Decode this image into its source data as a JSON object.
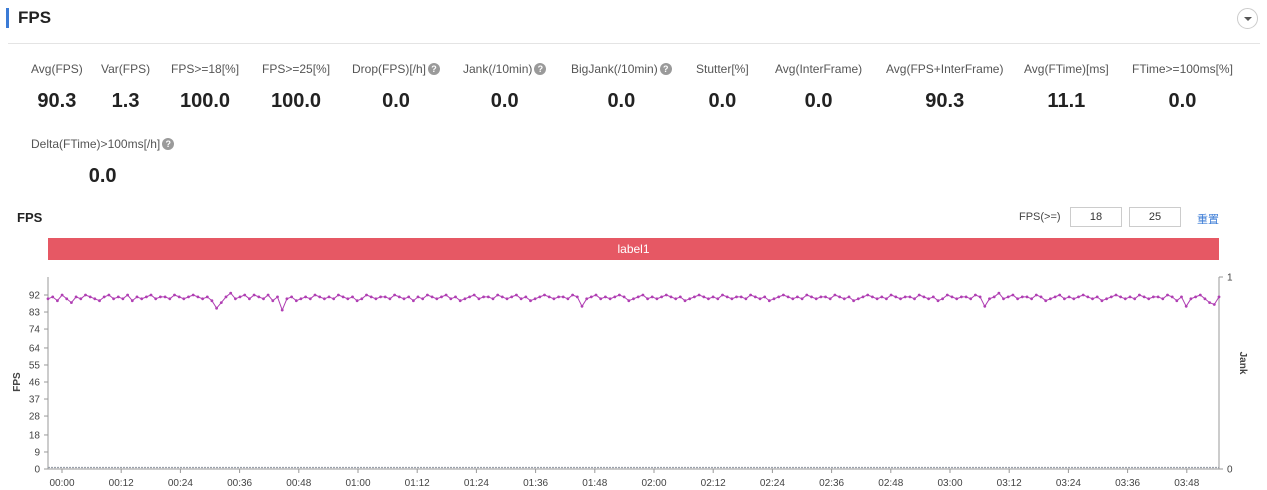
{
  "header": {
    "title": "FPS"
  },
  "metrics": [
    {
      "label": "Avg(FPS)",
      "value": "90.3",
      "help": false
    },
    {
      "label": "Var(FPS)",
      "value": "1.3",
      "help": false
    },
    {
      "label": "FPS>=18[%]",
      "value": "100.0",
      "help": false
    },
    {
      "label": "FPS>=25[%]",
      "value": "100.0",
      "help": false
    },
    {
      "label": "Drop(FPS)[/h]",
      "value": "0.0",
      "help": true
    },
    {
      "label": "Jank(/10min)",
      "value": "0.0",
      "help": true
    },
    {
      "label": "BigJank(/10min)",
      "value": "0.0",
      "help": true
    },
    {
      "label": "Stutter[%]",
      "value": "0.0",
      "help": false
    },
    {
      "label": "Avg(InterFrame)",
      "value": "0.0",
      "help": false
    },
    {
      "label": "Avg(FPS+InterFrame)",
      "value": "90.3",
      "help": false
    },
    {
      "label": "Avg(FTime)[ms]",
      "value": "11.1",
      "help": false
    },
    {
      "label": "FTime>=100ms[%]",
      "value": "0.0",
      "help": false
    },
    {
      "label": "Delta(FTime)>100ms[/h]",
      "value": "0.0",
      "help": true
    }
  ],
  "chart_header": {
    "title": "FPS",
    "threshold_label": "FPS(>=)",
    "threshold_1": "18",
    "threshold_2": "25",
    "reset_label": "重置"
  },
  "label_bar": "label1",
  "help_glyph": "?",
  "chart_data": {
    "type": "line",
    "ylabel": "FPS",
    "y2label": "Jank",
    "y_ticks": [
      "92",
      "83",
      "74",
      "64",
      "55",
      "46",
      "37",
      "28",
      "18",
      "9",
      "0"
    ],
    "y2_ticks": [
      "1",
      "0"
    ],
    "ylim": [
      0,
      100
    ],
    "x_ticks": [
      "00:00",
      "00:12",
      "00:24",
      "00:36",
      "00:48",
      "01:00",
      "01:12",
      "01:24",
      "01:36",
      "01:48",
      "02:00",
      "02:12",
      "02:24",
      "02:36",
      "02:48",
      "03:00",
      "03:12",
      "03:24",
      "03:36",
      "03:48"
    ],
    "series": [
      {
        "color": "#b03fb3",
        "values": [
          90,
          91,
          89,
          92,
          90,
          88,
          91,
          90,
          92,
          91,
          90,
          89,
          91,
          92,
          90,
          91,
          90,
          92,
          89,
          91,
          90,
          91,
          92,
          90,
          91,
          91,
          90,
          92,
          91,
          90,
          91,
          92,
          91,
          90,
          91,
          89,
          85,
          88,
          91,
          93,
          90,
          91,
          92,
          90,
          92,
          91,
          90,
          92,
          89,
          91,
          84,
          90,
          91,
          89,
          90,
          91,
          90,
          92,
          91,
          90,
          91,
          90,
          92,
          91,
          90,
          91,
          89,
          90,
          92,
          91,
          90,
          91,
          91,
          90,
          92,
          91,
          90,
          91,
          89,
          91,
          90,
          92,
          91,
          90,
          91,
          92,
          90,
          91,
          89,
          90,
          91,
          92,
          90,
          91,
          91,
          90,
          92,
          91,
          90,
          91,
          92,
          90,
          91,
          89,
          90,
          91,
          92,
          91,
          90,
          91,
          91,
          90,
          92,
          91,
          86,
          90,
          91,
          92,
          90,
          91,
          90,
          91,
          92,
          91,
          89,
          90,
          91,
          92,
          90,
          91,
          90,
          91,
          92,
          91,
          90,
          91,
          89,
          90,
          91,
          92,
          91,
          90,
          91,
          90,
          92,
          91,
          90,
          91,
          91,
          90,
          92,
          91,
          90,
          91,
          89,
          90,
          91,
          92,
          91,
          90,
          91,
          90,
          92,
          91,
          90,
          91,
          91,
          90,
          92,
          91,
          90,
          91,
          89,
          90,
          91,
          92,
          91,
          90,
          91,
          90,
          92,
          91,
          90,
          91,
          91,
          90,
          92,
          91,
          90,
          91,
          89,
          90,
          92,
          91,
          90,
          91,
          91,
          90,
          92,
          91,
          86,
          90,
          91,
          93,
          90,
          91,
          92,
          90,
          91,
          91,
          90,
          92,
          91,
          89,
          90,
          91,
          92,
          90,
          91,
          90,
          91,
          92,
          91,
          90,
          91,
          89,
          90,
          91,
          92,
          91,
          90,
          91,
          90,
          92,
          91,
          90,
          91,
          91,
          90,
          92,
          91,
          89,
          91,
          86,
          90,
          91,
          92,
          90,
          88,
          87,
          91
        ]
      },
      {
        "color": "#9aa0aa",
        "values": [
          0,
          0
        ]
      }
    ]
  }
}
